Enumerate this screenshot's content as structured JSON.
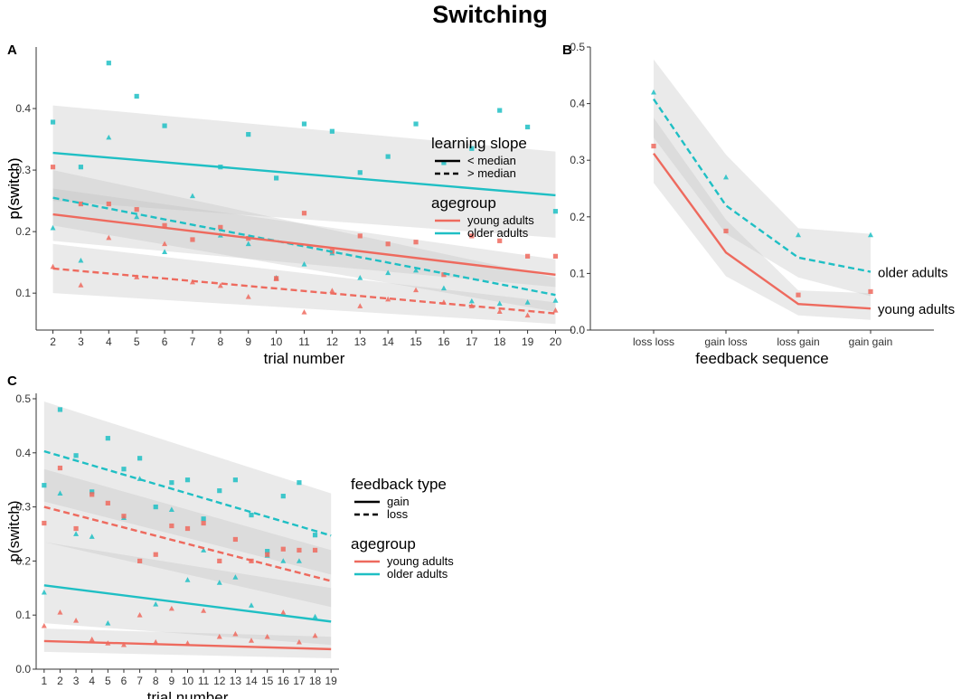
{
  "figure_title": "Switching",
  "colors": {
    "young": "#ee6a5e",
    "older": "#1fbfc4",
    "ribbon": "#bdbdbd"
  },
  "chart_data": [
    {
      "panel": "A",
      "type": "line",
      "xlabel": "trial number",
      "ylabel": "p(switch)",
      "xlim": [
        1.4,
        20.6
      ],
      "ylim": [
        0.04,
        0.5
      ],
      "xticks": [
        2,
        3,
        4,
        5,
        6,
        7,
        8,
        9,
        10,
        11,
        12,
        13,
        14,
        15,
        16,
        17,
        18,
        19,
        20
      ],
      "yticks": [
        0.1,
        0.2,
        0.3,
        0.4
      ],
      "legend": [
        {
          "title": "learning slope",
          "items": [
            {
              "label": "< median",
              "style": "solid"
            },
            {
              "label": "> median",
              "style": "dashed"
            }
          ]
        },
        {
          "title": "agegroup",
          "items": [
            {
              "label": "young adults",
              "color": "young"
            },
            {
              "label": "older adults",
              "color": "older"
            }
          ]
        }
      ],
      "series": [
        {
          "name": "older adults, < median",
          "color": "older",
          "style": "solid",
          "x": [
            2,
            20
          ],
          "y": [
            0.328,
            0.259
          ],
          "ci_lower": [
            0.25,
            0.19
          ],
          "ci_upper": [
            0.405,
            0.33
          ]
        },
        {
          "name": "older adults, > median",
          "color": "older",
          "style": "dashed",
          "x": [
            2,
            20
          ],
          "y": [
            0.255,
            0.097
          ],
          "ci_lower": [
            0.21,
            0.07
          ],
          "ci_upper": [
            0.3,
            0.125
          ]
        },
        {
          "name": "young adults, < median",
          "color": "young",
          "style": "solid",
          "x": [
            2,
            20
          ],
          "y": [
            0.228,
            0.13
          ],
          "ci_lower": [
            0.185,
            0.11
          ],
          "ci_upper": [
            0.27,
            0.155
          ]
        },
        {
          "name": "young adults, > median",
          "color": "young",
          "style": "dashed",
          "x": [
            2,
            20
          ],
          "y": [
            0.14,
            0.067
          ],
          "ci_lower": [
            0.1,
            0.05
          ],
          "ci_upper": [
            0.18,
            0.085
          ]
        }
      ],
      "points": [
        {
          "group": "older",
          "marker": "square",
          "x": [
            2,
            3,
            4,
            5,
            6,
            8,
            9,
            10,
            11,
            12,
            13,
            14,
            15,
            16,
            17,
            18,
            19,
            20
          ],
          "y": [
            0.378,
            0.305,
            0.474,
            0.42,
            0.372,
            0.305,
            0.358,
            0.287,
            0.375,
            0.363,
            0.296,
            0.322,
            0.375,
            0.312,
            0.335,
            0.397,
            0.37,
            0.233
          ]
        },
        {
          "group": "older",
          "marker": "triangle",
          "x": [
            2,
            3,
            4,
            5,
            6,
            7,
            8,
            9,
            10,
            11,
            12,
            13,
            14,
            15,
            16,
            17,
            18,
            19,
            20
          ],
          "y": [
            0.206,
            0.153,
            0.353,
            0.224,
            0.167,
            0.258,
            0.194,
            0.18,
            0.125,
            0.147,
            0.165,
            0.125,
            0.133,
            0.137,
            0.108,
            0.087,
            0.083,
            0.085,
            0.088
          ]
        },
        {
          "group": "young",
          "marker": "square",
          "x": [
            2,
            3,
            4,
            5,
            6,
            7,
            8,
            9,
            10,
            11,
            12,
            13,
            14,
            15,
            16,
            17,
            18,
            19,
            20
          ],
          "y": [
            0.305,
            0.245,
            0.245,
            0.236,
            0.21,
            0.187,
            0.207,
            0.189,
            0.124,
            0.23,
            0.168,
            0.193,
            0.18,
            0.183,
            0.13,
            0.193,
            0.185,
            0.16,
            0.16
          ]
        },
        {
          "group": "young",
          "marker": "triangle",
          "x": [
            2,
            3,
            4,
            5,
            6,
            7,
            8,
            9,
            10,
            11,
            12,
            13,
            14,
            15,
            16,
            17,
            18,
            19,
            20
          ],
          "y": [
            0.143,
            0.113,
            0.19,
            0.126,
            0.18,
            0.118,
            0.112,
            0.094,
            0.123,
            0.069,
            0.104,
            0.079,
            0.09,
            0.105,
            0.085,
            0.079,
            0.07,
            0.064,
            0.072
          ]
        }
      ]
    },
    {
      "panel": "B",
      "type": "line",
      "xlabel": "feedback sequence",
      "ylabel": "p(switch)",
      "categories": [
        "loss loss",
        "gain loss",
        "loss gain",
        "gain gain"
      ],
      "ylim": [
        0.0,
        0.5
      ],
      "yticks": [
        0.0,
        0.1,
        0.2,
        0.3,
        0.4,
        0.5
      ],
      "labels": [
        {
          "text": "older adults",
          "series": "older"
        },
        {
          "text": "young adults",
          "series": "young"
        }
      ],
      "series": [
        {
          "name": "older adults",
          "color": "older",
          "style": "dashed",
          "values": [
            0.408,
            0.22,
            0.128,
            0.103
          ],
          "ci_lower": [
            0.34,
            0.17,
            0.093,
            0.06
          ],
          "ci_upper": [
            0.478,
            0.31,
            0.18,
            0.17
          ]
        },
        {
          "name": "young adults",
          "color": "young",
          "style": "solid",
          "values": [
            0.312,
            0.137,
            0.046,
            0.038
          ],
          "ci_lower": [
            0.26,
            0.095,
            0.026,
            0.018
          ],
          "ci_upper": [
            0.375,
            0.195,
            0.07,
            0.065
          ]
        }
      ],
      "points": [
        {
          "group": "older",
          "marker": "triangle",
          "values": [
            0.42,
            0.27,
            0.168,
            0.168
          ]
        },
        {
          "group": "young",
          "marker": "square",
          "values": [
            0.325,
            0.175,
            0.062,
            0.068
          ]
        }
      ]
    },
    {
      "panel": "C",
      "type": "line",
      "xlabel": "trial number",
      "ylabel": "p(switch)",
      "xlim": [
        0.5,
        19.5
      ],
      "ylim": [
        0.0,
        0.51
      ],
      "xticks": [
        1,
        2,
        3,
        4,
        5,
        6,
        7,
        8,
        9,
        10,
        11,
        12,
        13,
        14,
        15,
        16,
        17,
        18,
        19
      ],
      "yticks": [
        0.0,
        0.1,
        0.2,
        0.3,
        0.4,
        0.5
      ],
      "legend": [
        {
          "title": "feedback type",
          "items": [
            {
              "label": "gain",
              "style": "solid"
            },
            {
              "label": "loss",
              "style": "dashed"
            }
          ]
        },
        {
          "title": "agegroup",
          "items": [
            {
              "label": "young adults",
              "color": "young"
            },
            {
              "label": "older adults",
              "color": "older"
            }
          ]
        }
      ],
      "series": [
        {
          "name": "older adults, loss",
          "color": "older",
          "style": "dashed",
          "x": [
            1,
            19
          ],
          "y": [
            0.403,
            0.247
          ],
          "ci_lower": [
            0.31,
            0.175
          ],
          "ci_upper": [
            0.495,
            0.325
          ]
        },
        {
          "name": "young adults, loss",
          "color": "young",
          "style": "dashed",
          "x": [
            1,
            19
          ],
          "y": [
            0.3,
            0.163
          ],
          "ci_lower": [
            0.235,
            0.115
          ],
          "ci_upper": [
            0.37,
            0.22
          ]
        },
        {
          "name": "older adults, gain",
          "color": "older",
          "style": "solid",
          "x": [
            1,
            19
          ],
          "y": [
            0.155,
            0.088
          ],
          "ci_lower": [
            0.085,
            0.045
          ],
          "ci_upper": [
            0.235,
            0.15
          ]
        },
        {
          "name": "young adults, gain",
          "color": "young",
          "style": "solid",
          "x": [
            1,
            19
          ],
          "y": [
            0.052,
            0.037
          ],
          "ci_lower": [
            0.032,
            0.02
          ],
          "ci_upper": [
            0.075,
            0.06
          ]
        }
      ],
      "points": [
        {
          "group": "older",
          "marker": "square",
          "x": [
            1,
            2,
            3,
            4,
            5,
            6,
            7,
            8,
            9,
            10,
            11,
            12,
            13,
            14,
            15,
            16,
            17,
            18
          ],
          "y": [
            0.34,
            0.48,
            0.395,
            0.328,
            0.427,
            0.37,
            0.39,
            0.3,
            0.345,
            0.35,
            0.278,
            0.33,
            0.35,
            0.285,
            0.218,
            0.32,
            0.345,
            0.248
          ]
        },
        {
          "group": "older",
          "marker": "triangle",
          "x": [
            1,
            2,
            3,
            4,
            5,
            6,
            7,
            8,
            9,
            10,
            11,
            12,
            13,
            14,
            15,
            16,
            17,
            18
          ],
          "y": [
            0.142,
            0.325,
            0.25,
            0.245,
            0.085,
            0.28,
            0.352,
            0.12,
            0.295,
            0.165,
            0.22,
            0.16,
            0.17,
            0.118,
            0.21,
            0.2,
            0.2,
            0.097
          ]
        },
        {
          "group": "young",
          "marker": "square",
          "x": [
            1,
            2,
            3,
            4,
            5,
            6,
            7,
            8,
            9,
            10,
            11,
            12,
            13,
            14,
            15,
            16,
            17,
            18
          ],
          "y": [
            0.27,
            0.372,
            0.26,
            0.323,
            0.307,
            0.283,
            0.2,
            0.212,
            0.265,
            0.26,
            0.27,
            0.2,
            0.24,
            0.2,
            0.212,
            0.222,
            0.22,
            0.22
          ]
        },
        {
          "group": "young",
          "marker": "triangle",
          "x": [
            1,
            2,
            3,
            4,
            5,
            6,
            7,
            8,
            9,
            10,
            11,
            12,
            13,
            14,
            15,
            16,
            17,
            18
          ],
          "y": [
            0.08,
            0.105,
            0.09,
            0.055,
            0.048,
            0.045,
            0.1,
            0.05,
            0.112,
            0.048,
            0.108,
            0.06,
            0.065,
            0.053,
            0.06,
            0.105,
            0.05,
            0.062
          ]
        }
      ]
    }
  ]
}
